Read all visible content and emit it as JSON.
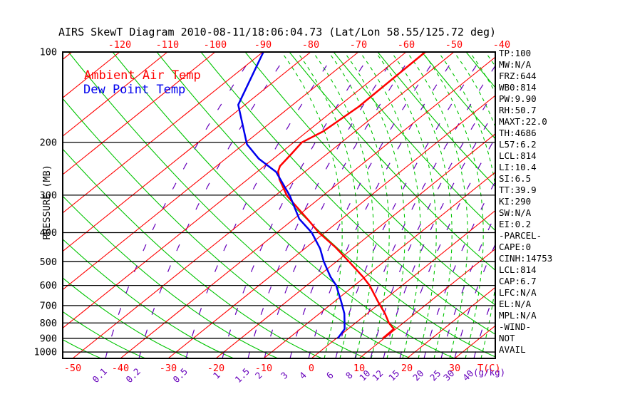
{
  "title": "AIRS SkewT Diagram 2010-08-11/18:06:04.73 (Lat/Lon 58.55/125.72 deg)",
  "legend": {
    "air_temp": "Ambient Air Temp",
    "dew_point": "Dew Point Temp"
  },
  "axes": {
    "pressure_label": "PRESSURE (MB)",
    "pressure_ticks": [
      100,
      200,
      300,
      400,
      500,
      600,
      700,
      800,
      900,
      1000
    ],
    "top_temp_ticks": [
      -120,
      -110,
      -100,
      -90,
      -80,
      -70,
      -60,
      -50,
      -40
    ],
    "bottom_temp_ticks": [
      -50,
      -40,
      -30,
      -20,
      -10,
      0,
      10,
      20,
      30
    ],
    "temp_unit": "T(C)",
    "mixing_ratio_ticks": [
      "0.1",
      "0.2",
      "0.5",
      "1",
      "1.5",
      "2",
      "3",
      "4",
      "6",
      "8",
      "10",
      "12",
      "15",
      "20",
      "25",
      "30",
      "40"
    ],
    "mixing_ratio_unit": "(g/kg)"
  },
  "stats": [
    "TP:100",
    "MW:N/A",
    "FRZ:644",
    "WB0:814",
    "PW:9.90",
    "RH:50.7",
    "MAXT:22.0",
    "TH:4686",
    "L57:6.2",
    "LCL:814",
    "LI:10.4",
    "SI:6.5",
    "TT:39.9",
    "KI:290",
    "SW:N/A",
    "EI:0.2",
    "-PARCEL-",
    "CAPE:0",
    "CINH:14753",
    "LCL:814",
    "CAP:6.7",
    "LFC:N/A",
    "EL:N/A",
    "MPL:N/A",
    "-WIND-",
    "NOT",
    "AVAIL"
  ],
  "colors": {
    "isotherm": "#ff0000",
    "adiabat": "#00c400",
    "moist_adiabat": "#00c400",
    "mixing_ratio": "#6600bb",
    "isobar": "#000000",
    "air_temp_curve": "#ff0000",
    "dew_point_curve": "#0000ee",
    "tick_red": "#ff0000",
    "tick_purple": "#6600bb",
    "text": "#000000"
  },
  "chart_data": {
    "type": "line",
    "title": "AIRS SkewT Diagram 2010-08-11/18:06:04.73 (Lat/Lon 58.55/125.72 deg)",
    "xlabel": "T(C)",
    "ylabel": "PRESSURE (MB)",
    "x_range": [
      -130,
      40
    ],
    "y_range": [
      100,
      1050
    ],
    "y_scale": "log-inverted",
    "skew": "temperature lines skewed 45 deg up-right",
    "series": [
      {
        "name": "Ambient Air Temp",
        "color": "#ff0000",
        "units": [
          "mb",
          "C"
        ],
        "points": [
          [
            100,
            -56.0
          ],
          [
            152,
            -55.7
          ],
          [
            184,
            -56.7
          ],
          [
            200,
            -58.3
          ],
          [
            218,
            -57.5
          ],
          [
            240,
            -56.7
          ],
          [
            250,
            -55.7
          ],
          [
            266,
            -53.3
          ],
          [
            302,
            -47.4
          ],
          [
            365,
            -36.4
          ],
          [
            400,
            -31.2
          ],
          [
            447,
            -24.0
          ],
          [
            500,
            -17.3
          ],
          [
            561,
            -10.5
          ],
          [
            600,
            -6.8
          ],
          [
            677,
            -1.0
          ],
          [
            744,
            3.7
          ],
          [
            800,
            7.0
          ],
          [
            838,
            9.6
          ],
          [
            900,
            9.7
          ]
        ]
      },
      {
        "name": "Dew Point Temp",
        "color": "#0000ee",
        "units": [
          "mb",
          "C"
        ],
        "points": [
          [
            100,
            -89.9
          ],
          [
            150,
            -81.4
          ],
          [
            203,
            -69.3
          ],
          [
            227,
            -63.0
          ],
          [
            251,
            -56.0
          ],
          [
            302,
            -46.8
          ],
          [
            360,
            -38.9
          ],
          [
            400,
            -32.7
          ],
          [
            452,
            -26.8
          ],
          [
            500,
            -22.6
          ],
          [
            561,
            -17.3
          ],
          [
            600,
            -13.8
          ],
          [
            677,
            -8.7
          ],
          [
            744,
            -4.8
          ],
          [
            800,
            -2.3
          ],
          [
            838,
            -0.7
          ],
          [
            900,
            0.3
          ]
        ]
      }
    ]
  }
}
